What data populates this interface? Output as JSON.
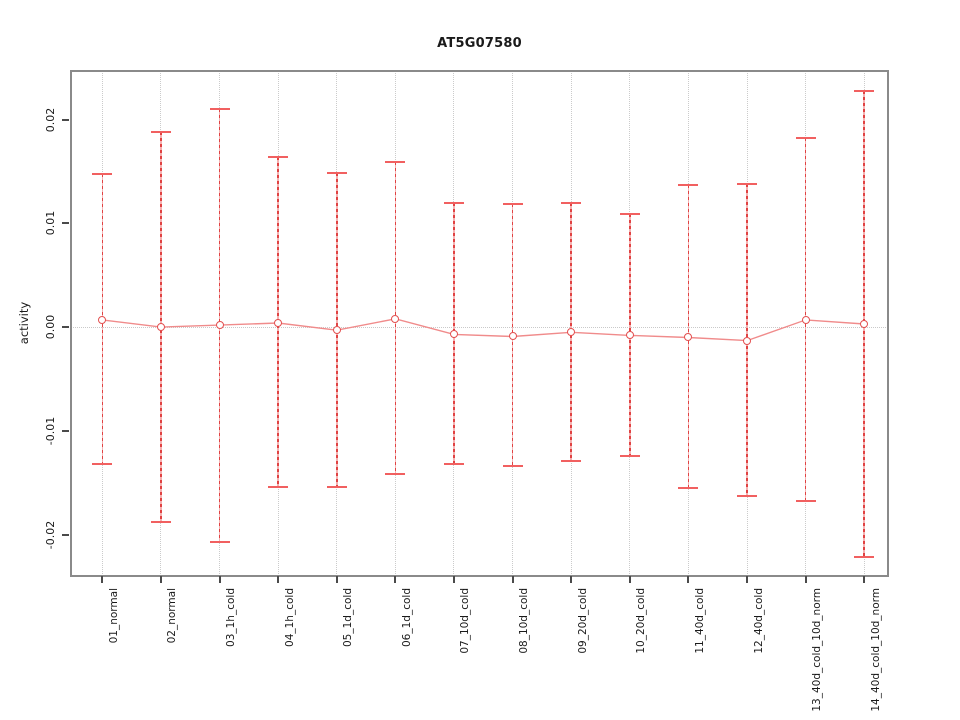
{
  "chart_data": {
    "type": "line",
    "title": "AT5G07580",
    "ylabel": "activity",
    "xlabel": "",
    "categories": [
      "01_normal",
      "02_normal",
      "03_1h_cold",
      "04_1h_cold",
      "05_1d_cold",
      "06_1d_cold",
      "07_10d_cold",
      "08_10d_cold",
      "09_20d_cold",
      "10_20d_cold",
      "11_40d_cold",
      "12_40d_cold",
      "13_40d_cold_10d_norm",
      "14_40d_cold_10d_norm"
    ],
    "series": [
      {
        "name": "activity",
        "values": [
          0.0007,
          0.0,
          0.0002,
          0.0004,
          -0.0003,
          0.0008,
          -0.0007,
          -0.0009,
          -0.0005,
          -0.0008,
          -0.001,
          -0.0013,
          0.0007,
          0.0003
        ],
        "upper": [
          0.0148,
          0.0188,
          0.021,
          0.0164,
          0.0149,
          0.0159,
          0.012,
          0.0119,
          0.012,
          0.0109,
          0.0137,
          0.0138,
          0.0182,
          0.0228
        ],
        "lower": [
          -0.0132,
          -0.0188,
          -0.0207,
          -0.0154,
          -0.0154,
          -0.0142,
          -0.0132,
          -0.0134,
          -0.0129,
          -0.0124,
          -0.0155,
          -0.0163,
          -0.0168,
          -0.0222
        ]
      }
    ],
    "y_ticks": [
      -0.02,
      -0.01,
      0.0,
      0.01,
      0.02
    ],
    "y_tick_labels": [
      "-0.02",
      "-0.01",
      "0.00",
      "0.01",
      "0.02"
    ],
    "ylim": [
      -0.024,
      0.0247
    ],
    "grid": "vertical dotted gridline per category; dotted horizontal line at 0",
    "legend": "none",
    "marker": "open-circle",
    "colors": {
      "error_bar_dark": "#e04343",
      "error_bar_light": "#f5b0b0",
      "cap": "#f16060",
      "series_line": "#f08b8b",
      "marker": "#e35050",
      "gridline": "#cbcbcb",
      "box_border": "#8a8a8a",
      "text": "#1a1a1a"
    }
  }
}
